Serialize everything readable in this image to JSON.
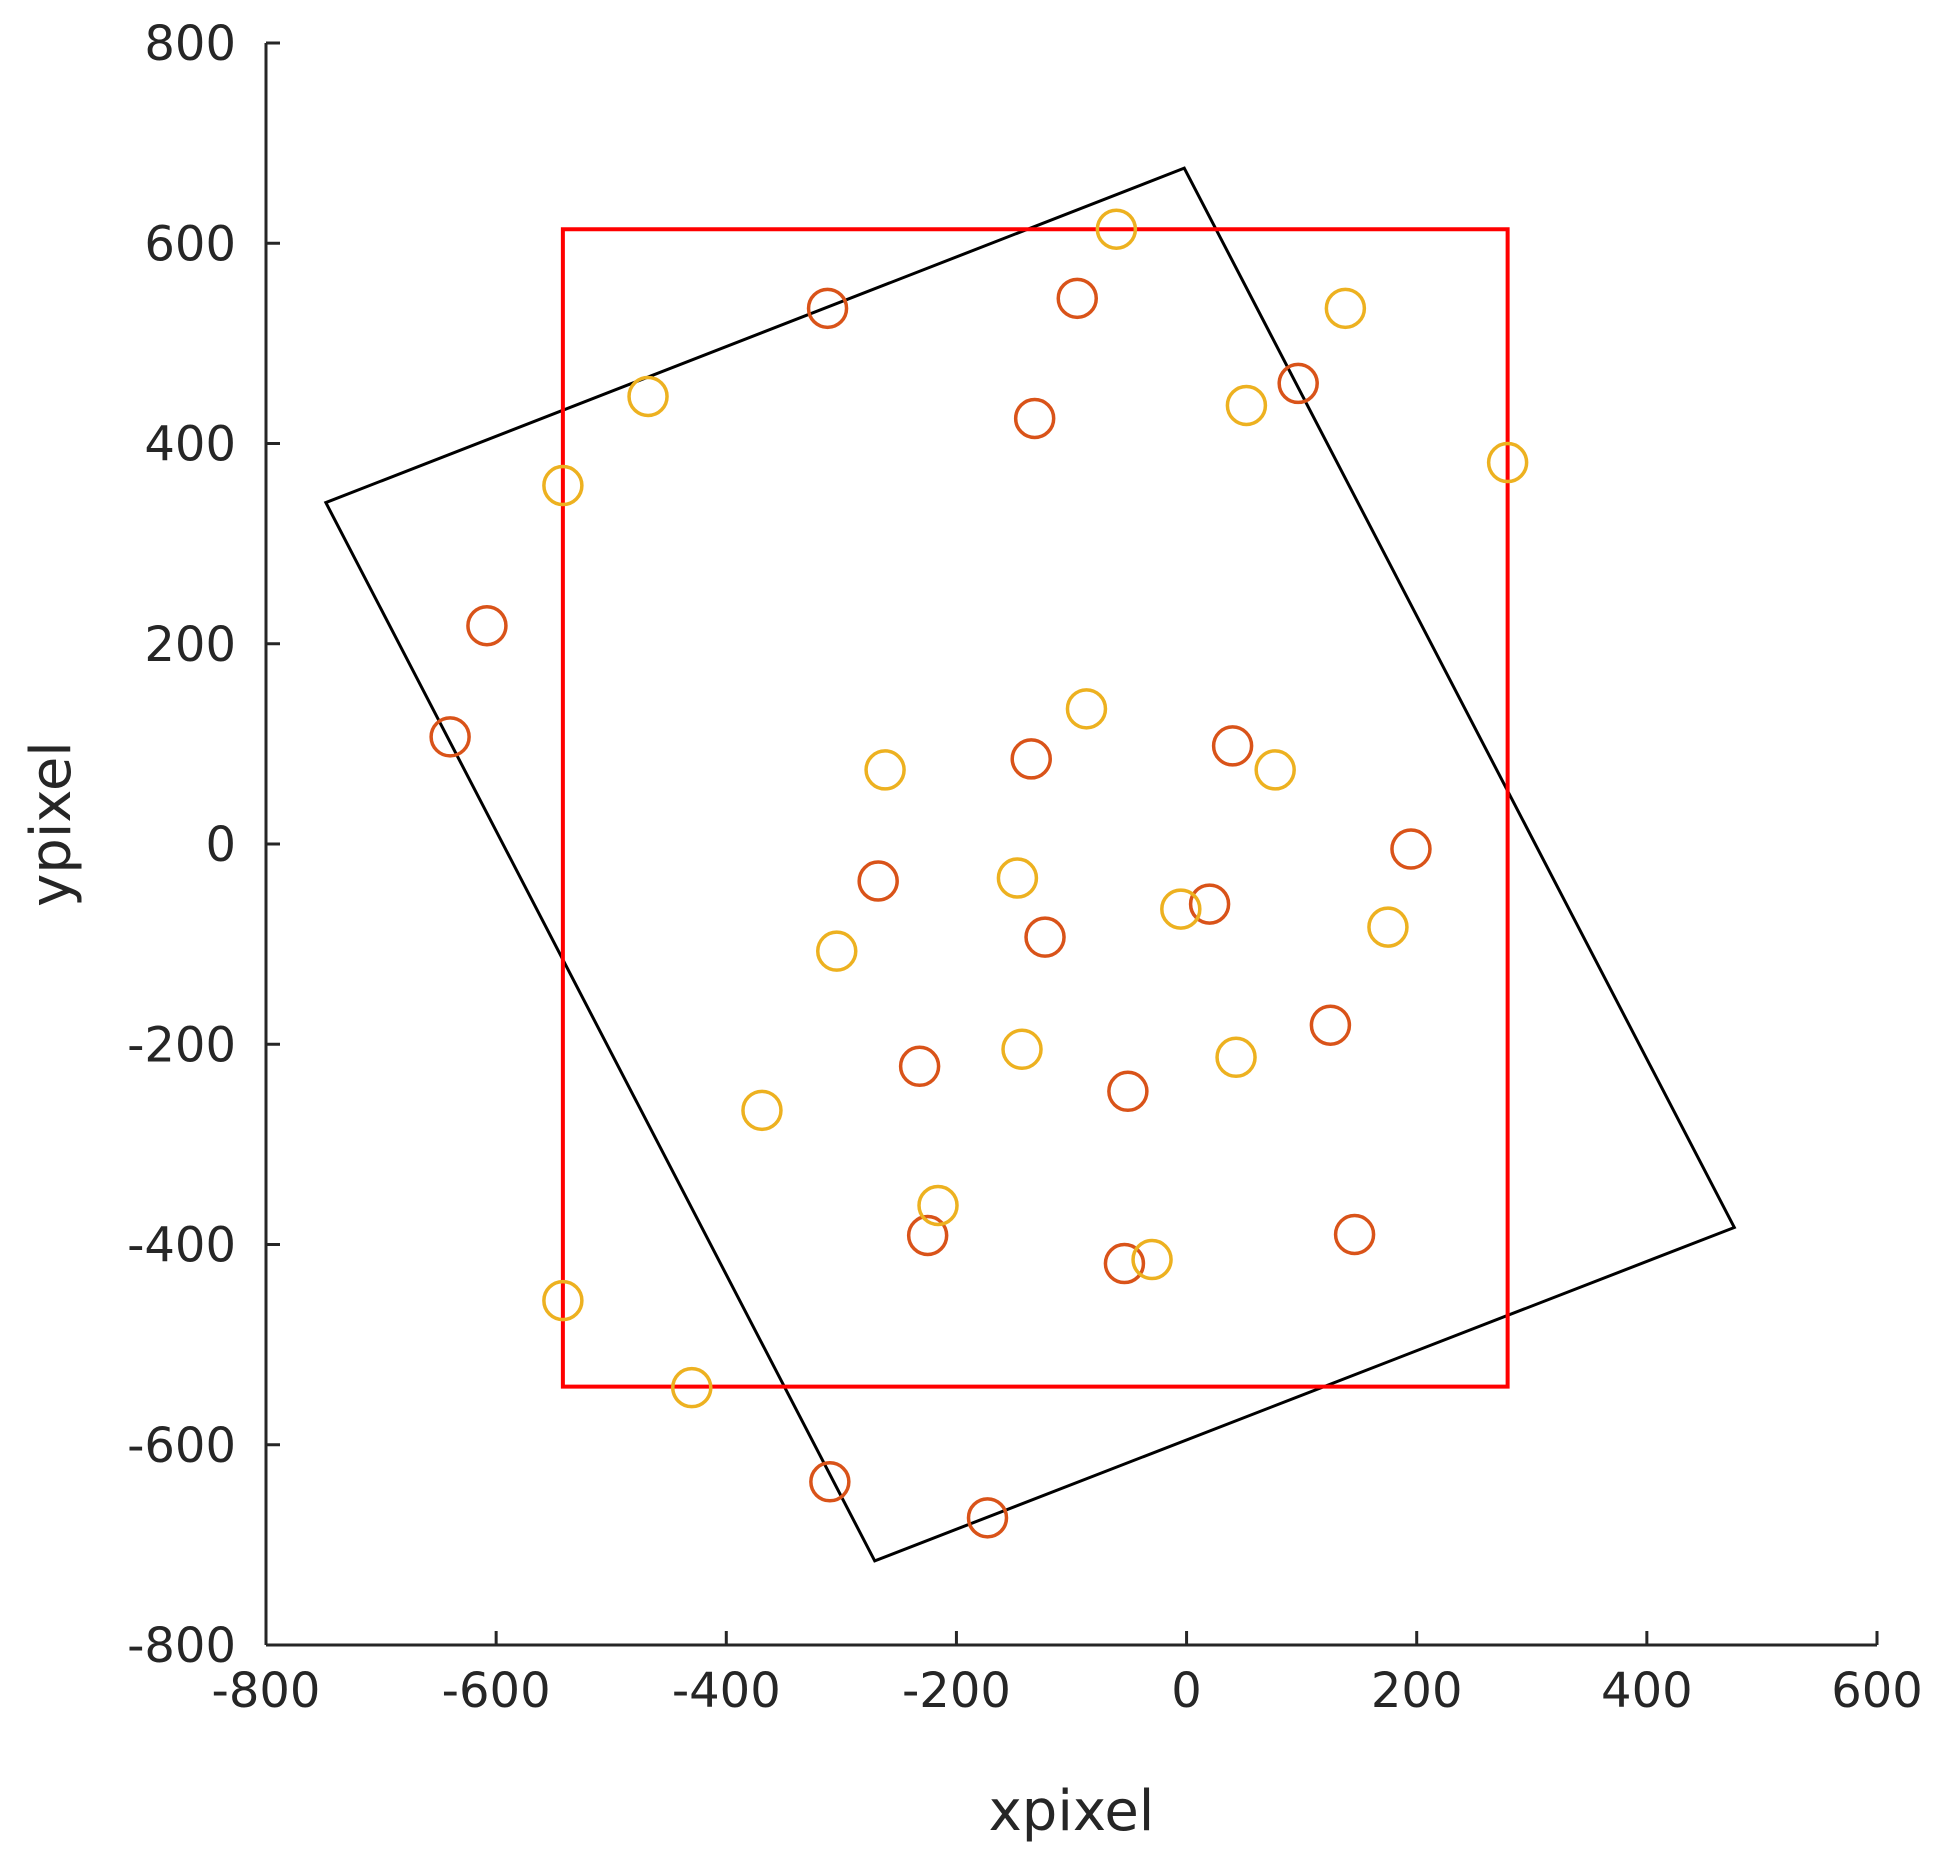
{
  "chart_data": {
    "type": "scatter",
    "xlabel": "xpixel",
    "ylabel": "ypixel",
    "xlim": [
      -800,
      600
    ],
    "ylim": [
      -800,
      800
    ],
    "xticks": [
      -800,
      -600,
      -400,
      -200,
      0,
      200,
      400,
      600
    ],
    "yticks": [
      -800,
      -600,
      -400,
      -200,
      0,
      200,
      400,
      600,
      800
    ],
    "xtick_labels": [
      "-800",
      "-600",
      "-400",
      "-200",
      "0",
      "200",
      "400",
      "600"
    ],
    "ytick_labels": [
      "-800",
      "-600",
      "-400",
      "-200",
      "0",
      "200",
      "400",
      "600",
      "800"
    ],
    "grid": false,
    "marker": "circle-open",
    "series": [
      {
        "color": "#d95319",
        "points": [
          [
            -312,
            535
          ],
          [
            -95,
            545
          ],
          [
            -132,
            425
          ],
          [
            97,
            460
          ],
          [
            -608,
            218
          ],
          [
            -640,
            107
          ],
          [
            -135,
            85
          ],
          [
            40,
            98
          ],
          [
            195,
            -5
          ],
          [
            -268,
            -37
          ],
          [
            20,
            -60
          ],
          [
            -123,
            -93
          ],
          [
            125,
            -181
          ],
          [
            -232,
            -222
          ],
          [
            -51,
            -247
          ],
          [
            -225,
            -391
          ],
          [
            -54,
            -419
          ],
          [
            146,
            -390
          ],
          [
            -310,
            -637
          ],
          [
            -173,
            -673
          ]
        ]
      },
      {
        "color": "#edb120",
        "points": [
          [
            -61,
            614
          ],
          [
            138,
            535
          ],
          [
            -468,
            447
          ],
          [
            52,
            438
          ],
          [
            279,
            381
          ],
          [
            -542,
            358
          ],
          [
            -87,
            135
          ],
          [
            -262,
            74
          ],
          [
            77,
            74
          ],
          [
            -147,
            -34
          ],
          [
            -5,
            -65
          ],
          [
            -304,
            -107
          ],
          [
            175,
            -83
          ],
          [
            -143,
            -205
          ],
          [
            43,
            -213
          ],
          [
            -369,
            -266
          ],
          [
            -216,
            -361
          ],
          [
            -30,
            -415
          ],
          [
            -542,
            -456
          ],
          [
            -430,
            -543
          ]
        ]
      }
    ],
    "shapes": [
      {
        "kind": "polygon",
        "color": "#000000",
        "vertices": [
          [
            -2,
            675
          ],
          [
            476,
            -383
          ],
          [
            -271,
            -716
          ],
          [
            -748,
            341
          ]
        ]
      },
      {
        "kind": "rectangle",
        "color": "#ff0000",
        "vertices": [
          [
            -542,
            614
          ],
          [
            279,
            614
          ],
          [
            279,
            -542
          ],
          [
            -542,
            -542
          ]
        ]
      }
    ]
  }
}
